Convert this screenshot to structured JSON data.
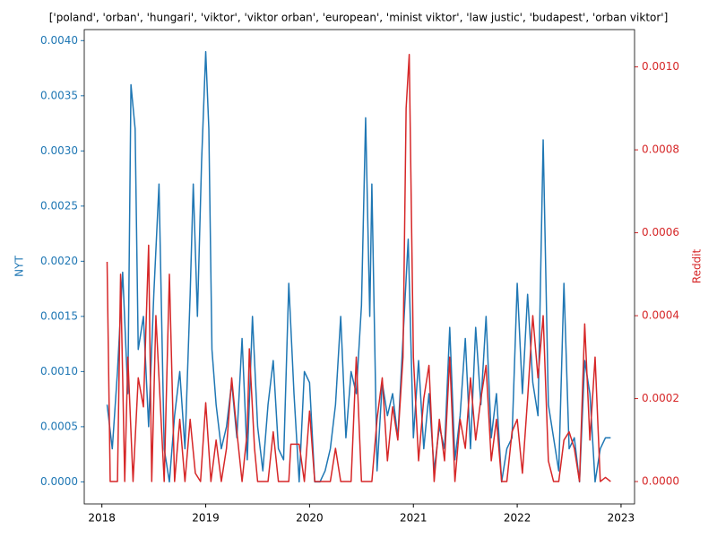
{
  "chart_data": {
    "type": "line",
    "title": "['poland', 'orban', 'hungari', 'viktor', 'viktor orban', 'european', 'minist viktor', 'law justic', 'budapest', 'orban viktor']",
    "ylabel": "NYT",
    "y2label": "Reddit",
    "xlim": [
      2017.83,
      2023.13
    ],
    "xticks": [
      2018,
      2019,
      2020,
      2021,
      2022,
      2023
    ],
    "ylim": [
      -0.0002,
      0.0041
    ],
    "yticks": [
      {
        "value": 0,
        "label": "0.0000"
      },
      {
        "value": 0.0005,
        "label": "0.0005"
      },
      {
        "value": 0.001,
        "label": "0.0010"
      },
      {
        "value": 0.0015,
        "label": "0.0015"
      },
      {
        "value": 0.002,
        "label": "0.0020"
      },
      {
        "value": 0.0025,
        "label": "0.0025"
      },
      {
        "value": 0.003,
        "label": "0.0030"
      },
      {
        "value": 0.0035,
        "label": "0.0035"
      },
      {
        "value": 0.004,
        "label": "0.0040"
      }
    ],
    "y2lim": [
      -5.4e-05,
      0.00109
    ],
    "y2ticks": [
      {
        "value": 0,
        "label": "0.0000"
      },
      {
        "value": 0.0002,
        "label": "0.0002"
      },
      {
        "value": 0.0004,
        "label": "0.0004"
      },
      {
        "value": 0.0006,
        "label": "0.0006"
      },
      {
        "value": 0.0008,
        "label": "0.0008"
      },
      {
        "value": 0.001,
        "label": "0.0010"
      }
    ],
    "series": [
      {
        "name": "NYT",
        "color": "#1f77b4",
        "axis": "y",
        "x": [
          2018.05,
          2018.1,
          2018.15,
          2018.2,
          2018.25,
          2018.28,
          2018.32,
          2018.35,
          2018.4,
          2018.45,
          2018.5,
          2018.55,
          2018.6,
          2018.65,
          2018.7,
          2018.75,
          2018.8,
          2018.85,
          2018.88,
          2018.92,
          2018.96,
          2019.0,
          2019.03,
          2019.06,
          2019.1,
          2019.15,
          2019.2,
          2019.25,
          2019.3,
          2019.35,
          2019.4,
          2019.45,
          2019.5,
          2019.55,
          2019.6,
          2019.65,
          2019.7,
          2019.75,
          2019.8,
          2019.85,
          2019.9,
          2019.95,
          2020.0,
          2020.05,
          2020.1,
          2020.15,
          2020.2,
          2020.25,
          2020.3,
          2020.35,
          2020.4,
          2020.45,
          2020.5,
          2020.54,
          2020.58,
          2020.6,
          2020.65,
          2020.7,
          2020.75,
          2020.8,
          2020.85,
          2020.9,
          2020.95,
          2021.0,
          2021.05,
          2021.1,
          2021.15,
          2021.2,
          2021.25,
          2021.3,
          2021.35,
          2021.4,
          2021.45,
          2021.5,
          2021.55,
          2021.6,
          2021.65,
          2021.7,
          2021.75,
          2021.8,
          2021.85,
          2021.9,
          2021.95,
          2022.0,
          2022.05,
          2022.1,
          2022.15,
          2022.2,
          2022.25,
          2022.3,
          2022.35,
          2022.4,
          2022.45,
          2022.5,
          2022.55,
          2022.6,
          2022.65,
          2022.7,
          2022.75,
          2022.8,
          2022.85,
          2022.9
        ],
        "values": [
          0.0007,
          0.0003,
          0.001,
          0.0019,
          0.0008,
          0.0036,
          0.0032,
          0.0012,
          0.0015,
          0.0005,
          0.0017,
          0.0027,
          0.0003,
          0,
          0.0006,
          0.001,
          0.0003,
          0.0017,
          0.0027,
          0.0015,
          0.0029,
          0.0039,
          0.0032,
          0.0012,
          0.0007,
          0.0003,
          0.0005,
          0.0009,
          0.0004,
          0.0013,
          0.0002,
          0.0015,
          0.0005,
          0.0001,
          0.0007,
          0.0011,
          0.0003,
          0.0002,
          0.0018,
          0.0008,
          0,
          0.001,
          0.0009,
          0,
          0,
          0.0001,
          0.0003,
          0.0007,
          0.0015,
          0.0004,
          0.001,
          0.0008,
          0.0016,
          0.0033,
          0.0015,
          0.0027,
          0.0001,
          0.0009,
          0.0006,
          0.0008,
          0.0004,
          0.0013,
          0.0022,
          0.0004,
          0.0011,
          0.0003,
          0.0008,
          0.0001,
          0.0005,
          0.0003,
          0.0014,
          0.0002,
          0.0006,
          0.0013,
          0.0003,
          0.0014,
          0.0007,
          0.0015,
          0.0004,
          0.0008,
          0,
          0.0003,
          0.0004,
          0.0018,
          0.0008,
          0.0017,
          0.0009,
          0.0006,
          0.0031,
          0.0007,
          0.0004,
          0.0001,
          0.0018,
          0.0003,
          0.0004,
          0,
          0.0011,
          0.0008,
          0,
          0.0003,
          0.0004,
          0.0004
        ]
      },
      {
        "name": "Reddit",
        "color": "#d62728",
        "axis": "y2",
        "x": [
          2018.05,
          2018.08,
          2018.15,
          2018.18,
          2018.22,
          2018.25,
          2018.3,
          2018.35,
          2018.4,
          2018.45,
          2018.48,
          2018.52,
          2018.55,
          2018.6,
          2018.65,
          2018.7,
          2018.75,
          2018.8,
          2018.85,
          2018.9,
          2018.95,
          2019.0,
          2019.05,
          2019.1,
          2019.15,
          2019.2,
          2019.25,
          2019.3,
          2019.35,
          2019.4,
          2019.42,
          2019.47,
          2019.5,
          2019.6,
          2019.65,
          2019.7,
          2019.8,
          2019.82,
          2019.9,
          2019.95,
          2020.0,
          2020.05,
          2020.2,
          2020.25,
          2020.3,
          2020.4,
          2020.45,
          2020.5,
          2020.55,
          2020.6,
          2020.65,
          2020.7,
          2020.75,
          2020.8,
          2020.85,
          2020.9,
          2020.93,
          2020.96,
          2021.0,
          2021.05,
          2021.1,
          2021.15,
          2021.2,
          2021.25,
          2021.3,
          2021.35,
          2021.4,
          2021.45,
          2021.5,
          2021.55,
          2021.6,
          2021.65,
          2021.7,
          2021.75,
          2021.8,
          2021.85,
          2021.9,
          2021.95,
          2022.0,
          2022.05,
          2022.1,
          2022.15,
          2022.2,
          2022.25,
          2022.3,
          2022.35,
          2022.4,
          2022.45,
          2022.5,
          2022.55,
          2022.6,
          2022.65,
          2022.7,
          2022.75,
          2022.8,
          2022.85,
          2022.9
        ],
        "values": [
          0.00053,
          0,
          0,
          0.0005,
          0,
          0.0003,
          0,
          0.00025,
          0.00018,
          0.00057,
          0,
          0.0004,
          0.00025,
          0,
          0.0005,
          0,
          0.00015,
          0,
          0.00015,
          2e-05,
          0,
          0.00019,
          0,
          0.0001,
          0,
          8e-05,
          0.00025,
          0.00012,
          0,
          0.00012,
          0.00032,
          8e-05,
          0,
          0,
          0.00012,
          0,
          0,
          9e-05,
          9e-05,
          0,
          0.00017,
          0,
          0,
          8e-05,
          0,
          0,
          0.0003,
          0,
          0,
          0,
          0.00015,
          0.00025,
          5e-05,
          0.00018,
          0.0001,
          0.0003,
          0.0009,
          0.00103,
          0.0003,
          5e-05,
          0.0002,
          0.00028,
          0,
          0.00015,
          5e-05,
          0.0003,
          0,
          0.00015,
          8e-05,
          0.00025,
          0.0001,
          0.0002,
          0.00028,
          5e-05,
          0.00015,
          0,
          0,
          0.00012,
          0.00015,
          2e-05,
          0.0002,
          0.0004,
          0.00025,
          0.0004,
          5e-05,
          0,
          0,
          0.0001,
          0.00012,
          8e-05,
          0,
          0.00038,
          0.0001,
          0.0003,
          0,
          1e-05,
          0
        ]
      }
    ]
  }
}
